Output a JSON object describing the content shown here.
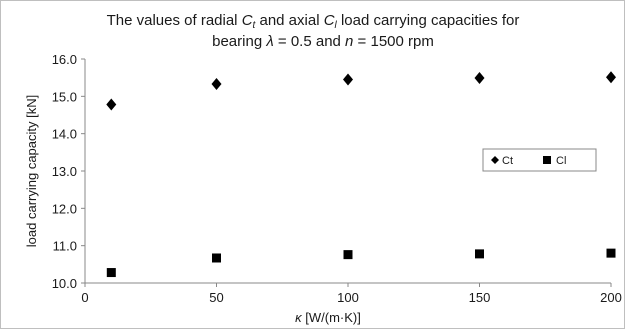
{
  "chart_data": {
    "type": "scatter",
    "title": {
      "line1": {
        "a": "The values of radial ",
        "b": "C",
        "c": "t",
        "d": " and axial ",
        "e": "C",
        "f": "l",
        "g": " load carrying capacities for"
      },
      "line2": {
        "a": "bearing ",
        "b": "λ",
        "c": " = 0.5 and ",
        "d": "n",
        "e": " = 1500 rpm"
      }
    },
    "xlabel": {
      "sym": "κ",
      "unit": " [W/(m·K)]"
    },
    "ylabel": "load carrying capacity [kN]",
    "xlim": [
      0,
      200
    ],
    "ylim": [
      10,
      16
    ],
    "x_ticks": [
      "0",
      "50",
      "100",
      "150",
      "200"
    ],
    "y_ticks": [
      "10.0",
      "11.0",
      "12.0",
      "13.0",
      "14.0",
      "15.0",
      "16.0"
    ],
    "grid": false,
    "legend_position": "right",
    "series": [
      {
        "name": "Ct",
        "marker": "diamond",
        "color": "#000000",
        "x": [
          10,
          50,
          100,
          150,
          200
        ],
        "y": [
          14.78,
          15.33,
          15.45,
          15.49,
          15.51
        ]
      },
      {
        "name": "Cl",
        "marker": "square",
        "color": "#000000",
        "x": [
          10,
          50,
          100,
          150,
          200
        ],
        "y": [
          10.28,
          10.67,
          10.76,
          10.78,
          10.8
        ]
      }
    ]
  }
}
